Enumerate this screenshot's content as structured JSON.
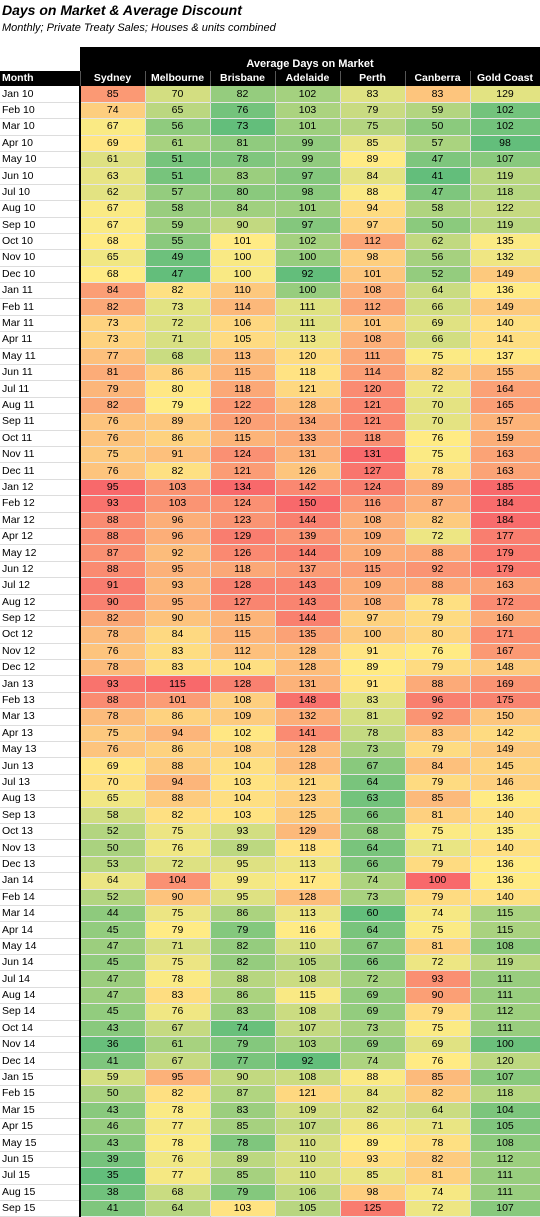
{
  "title": "Days on Market & Average Discount",
  "subtitle": "Monthly; Private Treaty Sales; Houses & units combined",
  "chart_data": {
    "type": "heatmap",
    "title": "Average Days on Market",
    "row_header": "Month",
    "columns": [
      "Sydney",
      "Melbourne",
      "Brisbane",
      "Adelaide",
      "Perth",
      "Canberra",
      "Gold Coast"
    ],
    "color_scale": {
      "low": "#63be7b",
      "mid": "#ffeb84",
      "high": "#f8696b"
    },
    "rows": [
      {
        "month": "Jan 10",
        "values": [
          85,
          70,
          82,
          102,
          83,
          83,
          129
        ]
      },
      {
        "month": "Feb 10",
        "values": [
          74,
          65,
          76,
          103,
          79,
          59,
          102
        ]
      },
      {
        "month": "Mar 10",
        "values": [
          67,
          56,
          73,
          101,
          75,
          50,
          102
        ]
      },
      {
        "month": "Apr 10",
        "values": [
          69,
          61,
          81,
          99,
          85,
          57,
          98
        ]
      },
      {
        "month": "May 10",
        "values": [
          61,
          51,
          78,
          99,
          89,
          47,
          107
        ]
      },
      {
        "month": "Jun 10",
        "values": [
          63,
          51,
          83,
          97,
          84,
          41,
          119
        ]
      },
      {
        "month": "Jul 10",
        "values": [
          62,
          57,
          80,
          98,
          88,
          47,
          118
        ]
      },
      {
        "month": "Aug 10",
        "values": [
          67,
          58,
          84,
          101,
          94,
          58,
          122
        ]
      },
      {
        "month": "Sep 10",
        "values": [
          67,
          59,
          90,
          97,
          97,
          50,
          119
        ]
      },
      {
        "month": "Oct 10",
        "values": [
          68,
          55,
          101,
          102,
          112,
          62,
          135
        ]
      },
      {
        "month": "Nov 10",
        "values": [
          65,
          49,
          100,
          100,
          98,
          56,
          132
        ]
      },
      {
        "month": "Dec 10",
        "values": [
          68,
          47,
          100,
          92,
          101,
          52,
          149
        ]
      },
      {
        "month": "Jan 11",
        "values": [
          84,
          82,
          110,
          100,
          108,
          64,
          136
        ]
      },
      {
        "month": "Feb 11",
        "values": [
          82,
          73,
          114,
          111,
          112,
          66,
          149
        ]
      },
      {
        "month": "Mar 11",
        "values": [
          73,
          72,
          106,
          111,
          101,
          69,
          140
        ]
      },
      {
        "month": "Apr 11",
        "values": [
          73,
          71,
          105,
          113,
          108,
          66,
          141
        ]
      },
      {
        "month": "May 11",
        "values": [
          77,
          68,
          113,
          120,
          111,
          75,
          137
        ]
      },
      {
        "month": "Jun 11",
        "values": [
          81,
          86,
          115,
          118,
          114,
          82,
          155
        ]
      },
      {
        "month": "Jul 11",
        "values": [
          79,
          80,
          118,
          121,
          120,
          72,
          164
        ]
      },
      {
        "month": "Aug 11",
        "values": [
          82,
          79,
          122,
          128,
          121,
          70,
          165
        ]
      },
      {
        "month": "Sep 11",
        "values": [
          76,
          89,
          120,
          134,
          121,
          70,
          157
        ]
      },
      {
        "month": "Oct 11",
        "values": [
          76,
          86,
          115,
          133,
          118,
          76,
          159
        ]
      },
      {
        "month": "Nov 11",
        "values": [
          75,
          91,
          124,
          131,
          131,
          75,
          163
        ]
      },
      {
        "month": "Dec 11",
        "values": [
          76,
          82,
          121,
          126,
          127,
          78,
          163
        ]
      },
      {
        "month": "Jan 12",
        "values": [
          95,
          103,
          134,
          142,
          124,
          89,
          185
        ]
      },
      {
        "month": "Feb 12",
        "values": [
          93,
          103,
          124,
          150,
          116,
          87,
          184
        ]
      },
      {
        "month": "Mar 12",
        "values": [
          88,
          96,
          123,
          144,
          108,
          82,
          184
        ]
      },
      {
        "month": "Apr 12",
        "values": [
          88,
          96,
          129,
          139,
          109,
          72,
          177
        ]
      },
      {
        "month": "May 12",
        "values": [
          87,
          92,
          126,
          144,
          109,
          88,
          179
        ]
      },
      {
        "month": "Jun 12",
        "values": [
          88,
          95,
          118,
          137,
          115,
          92,
          179
        ]
      },
      {
        "month": "Jul 12",
        "values": [
          91,
          93,
          128,
          143,
          109,
          88,
          163
        ]
      },
      {
        "month": "Aug 12",
        "values": [
          90,
          95,
          127,
          143,
          108,
          78,
          172
        ]
      },
      {
        "month": "Sep 12",
        "values": [
          82,
          90,
          115,
          144,
          97,
          79,
          160
        ]
      },
      {
        "month": "Oct 12",
        "values": [
          78,
          84,
          115,
          135,
          100,
          80,
          171
        ]
      },
      {
        "month": "Nov 12",
        "values": [
          76,
          83,
          112,
          128,
          91,
          76,
          167
        ]
      },
      {
        "month": "Dec 12",
        "values": [
          78,
          83,
          104,
          128,
          89,
          79,
          148
        ]
      },
      {
        "month": "Jan 13",
        "values": [
          93,
          115,
          128,
          131,
          91,
          88,
          169
        ]
      },
      {
        "month": "Feb 13",
        "values": [
          88,
          101,
          108,
          148,
          83,
          96,
          175
        ]
      },
      {
        "month": "Mar 13",
        "values": [
          78,
          86,
          109,
          132,
          81,
          92,
          150
        ]
      },
      {
        "month": "Apr 13",
        "values": [
          75,
          94,
          102,
          141,
          78,
          83,
          142
        ]
      },
      {
        "month": "May 13",
        "values": [
          76,
          86,
          108,
          128,
          73,
          79,
          149
        ]
      },
      {
        "month": "Jun 13",
        "values": [
          69,
          88,
          104,
          128,
          67,
          84,
          145
        ]
      },
      {
        "month": "Jul 13",
        "values": [
          70,
          94,
          103,
          121,
          64,
          79,
          146
        ]
      },
      {
        "month": "Aug 13",
        "values": [
          65,
          88,
          104,
          123,
          63,
          85,
          136
        ]
      },
      {
        "month": "Sep 13",
        "values": [
          58,
          82,
          103,
          125,
          66,
          81,
          140
        ]
      },
      {
        "month": "Oct 13",
        "values": [
          52,
          75,
          93,
          129,
          68,
          75,
          135
        ]
      },
      {
        "month": "Nov 13",
        "values": [
          50,
          76,
          89,
          118,
          64,
          71,
          140
        ]
      },
      {
        "month": "Dec 13",
        "values": [
          53,
          72,
          95,
          113,
          66,
          79,
          136
        ]
      },
      {
        "month": "Jan 14",
        "values": [
          64,
          104,
          99,
          117,
          74,
          100,
          136
        ]
      },
      {
        "month": "Feb 14",
        "values": [
          52,
          90,
          95,
          128,
          73,
          79,
          140
        ]
      },
      {
        "month": "Mar 14",
        "values": [
          44,
          75,
          86,
          113,
          60,
          74,
          115
        ]
      },
      {
        "month": "Apr 14",
        "values": [
          45,
          79,
          79,
          116,
          64,
          75,
          115
        ]
      },
      {
        "month": "May 14",
        "values": [
          47,
          71,
          82,
          110,
          67,
          81,
          108
        ]
      },
      {
        "month": "Jun 14",
        "values": [
          45,
          75,
          82,
          105,
          66,
          72,
          119
        ]
      },
      {
        "month": "Jul 14",
        "values": [
          47,
          78,
          88,
          108,
          72,
          93,
          111
        ]
      },
      {
        "month": "Aug 14",
        "values": [
          47,
          83,
          86,
          115,
          69,
          90,
          111
        ]
      },
      {
        "month": "Sep 14",
        "values": [
          45,
          76,
          83,
          108,
          69,
          79,
          112
        ]
      },
      {
        "month": "Oct 14",
        "values": [
          43,
          67,
          74,
          107,
          73,
          75,
          111
        ]
      },
      {
        "month": "Nov 14",
        "values": [
          36,
          61,
          79,
          103,
          69,
          69,
          100
        ]
      },
      {
        "month": "Dec 14",
        "values": [
          41,
          67,
          77,
          92,
          74,
          76,
          120
        ]
      },
      {
        "month": "Jan 15",
        "values": [
          59,
          95,
          90,
          108,
          88,
          85,
          107
        ]
      },
      {
        "month": "Feb 15",
        "values": [
          50,
          82,
          87,
          121,
          84,
          82,
          118
        ]
      },
      {
        "month": "Mar 15",
        "values": [
          43,
          78,
          83,
          109,
          82,
          64,
          104
        ]
      },
      {
        "month": "Apr 15",
        "values": [
          46,
          77,
          85,
          107,
          86,
          71,
          105
        ]
      },
      {
        "month": "May 15",
        "values": [
          43,
          78,
          78,
          110,
          89,
          78,
          108
        ]
      },
      {
        "month": "Jun 15",
        "values": [
          39,
          76,
          89,
          110,
          93,
          82,
          112
        ]
      },
      {
        "month": "Jul 15",
        "values": [
          35,
          77,
          85,
          110,
          85,
          81,
          111
        ]
      },
      {
        "month": "Aug 15",
        "values": [
          38,
          68,
          79,
          106,
          98,
          74,
          111
        ]
      },
      {
        "month": "Sep 15",
        "values": [
          41,
          64,
          103,
          105,
          125,
          72,
          107
        ]
      }
    ]
  }
}
